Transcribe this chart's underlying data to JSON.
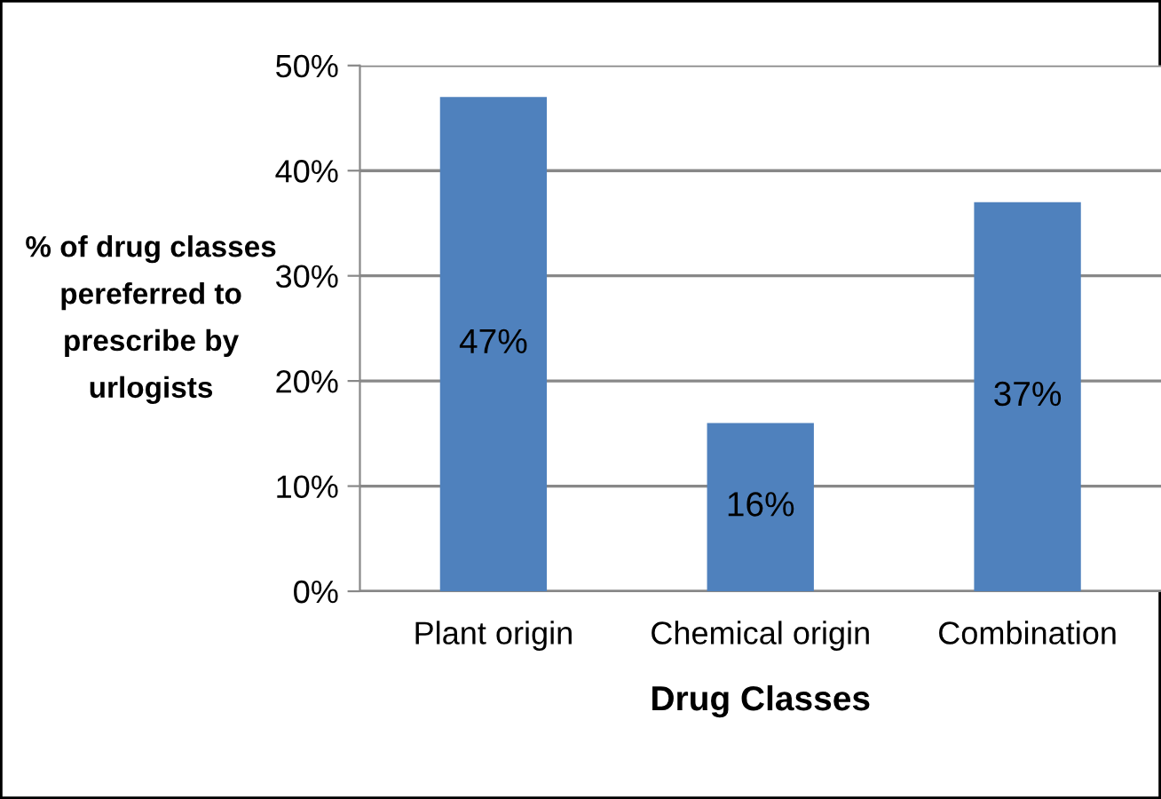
{
  "chart_data": {
    "type": "bar",
    "xlabel": "Drug Classes",
    "ylabel": "% of drug classes\npereferred to\nprescribe by\nurlogists",
    "categories": [
      "Plant origin",
      "Chemical origin",
      "Combination"
    ],
    "values": [
      47,
      16,
      37
    ],
    "color": "#4f81bd",
    "value_labels": [
      "47%",
      "16%",
      "37%"
    ],
    "ylim": [
      0,
      50
    ],
    "yticks": [
      {
        "value": 0,
        "label": "0%"
      },
      {
        "value": 10,
        "label": "10%"
      },
      {
        "value": 20,
        "label": "20%"
      },
      {
        "value": 30,
        "label": "30%"
      },
      {
        "value": 40,
        "label": "40%"
      },
      {
        "value": 50,
        "label": "50%"
      }
    ],
    "grid": "y",
    "legend": false
  }
}
